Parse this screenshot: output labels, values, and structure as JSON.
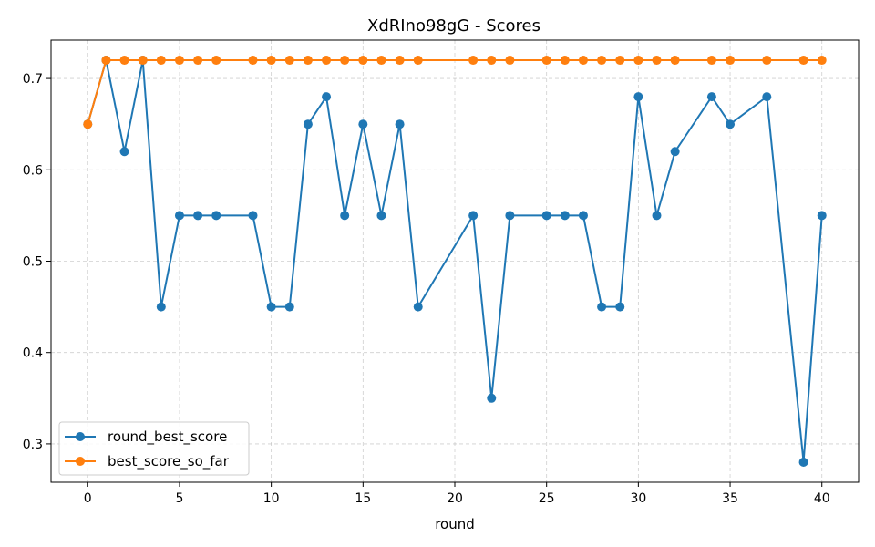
{
  "chart_data": {
    "type": "line",
    "title": "XdRIno98gG - Scores",
    "xlabel": "round",
    "ylabel": "",
    "xlim": [
      -2,
      42
    ],
    "ylim": [
      0.258,
      0.742
    ],
    "xticks": [
      0,
      5,
      10,
      15,
      20,
      25,
      30,
      35,
      40
    ],
    "yticks": [
      0.3,
      0.4,
      0.5,
      0.6,
      0.7
    ],
    "grid": true,
    "legend_position": "lower-left",
    "series": [
      {
        "name": "round_best_score",
        "color": "#1f77b4",
        "x": [
          0,
          1,
          2,
          3,
          4,
          5,
          6,
          7,
          9,
          10,
          11,
          12,
          13,
          14,
          15,
          16,
          17,
          18,
          21,
          22,
          23,
          25,
          26,
          27,
          28,
          29,
          30,
          31,
          32,
          34,
          35,
          37,
          39,
          40
        ],
        "y": [
          0.65,
          0.72,
          0.62,
          0.72,
          0.45,
          0.55,
          0.55,
          0.55,
          0.55,
          0.45,
          0.45,
          0.65,
          0.68,
          0.55,
          0.65,
          0.55,
          0.65,
          0.45,
          0.55,
          0.35,
          0.55,
          0.55,
          0.55,
          0.55,
          0.45,
          0.45,
          0.68,
          0.55,
          0.62,
          0.68,
          0.65,
          0.68,
          0.28,
          0.55
        ]
      },
      {
        "name": "best_score_so_far",
        "color": "#ff7f0e",
        "x": [
          0,
          1,
          2,
          3,
          4,
          5,
          6,
          7,
          9,
          10,
          11,
          12,
          13,
          14,
          15,
          16,
          17,
          18,
          21,
          22,
          23,
          25,
          26,
          27,
          28,
          29,
          30,
          31,
          32,
          34,
          35,
          37,
          39,
          40
        ],
        "y": [
          0.65,
          0.72,
          0.72,
          0.72,
          0.72,
          0.72,
          0.72,
          0.72,
          0.72,
          0.72,
          0.72,
          0.72,
          0.72,
          0.72,
          0.72,
          0.72,
          0.72,
          0.72,
          0.72,
          0.72,
          0.72,
          0.72,
          0.72,
          0.72,
          0.72,
          0.72,
          0.72,
          0.72,
          0.72,
          0.72,
          0.72,
          0.72,
          0.72,
          0.72
        ]
      }
    ]
  }
}
